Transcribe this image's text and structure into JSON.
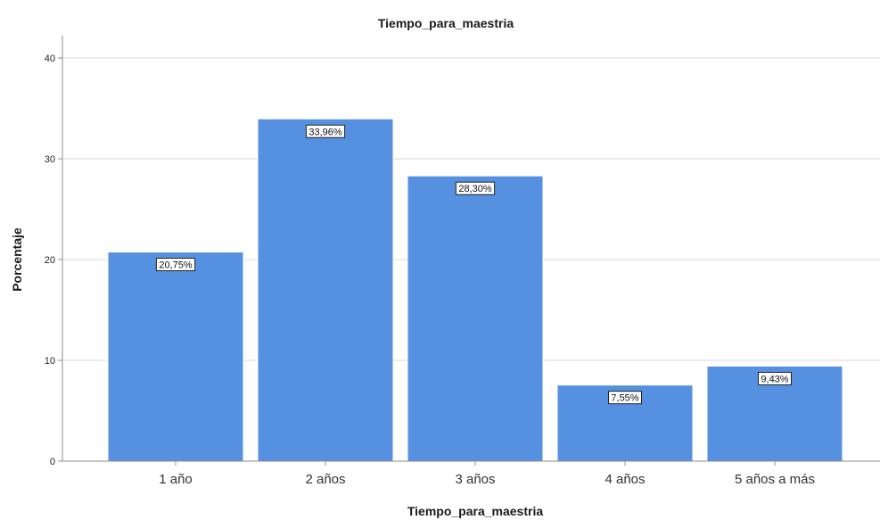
{
  "chart_data": {
    "type": "bar",
    "title": "Tiempo_para_maestria",
    "xlabel": "Tiempo_para_maestria",
    "ylabel": "Porcentaje",
    "categories": [
      "1 año",
      "2 años",
      "3 años",
      "4 años",
      "5 años a más"
    ],
    "values": [
      20.75,
      33.96,
      28.3,
      7.55,
      9.43
    ],
    "data_labels": [
      "20,75%",
      "33,96%",
      "28,30%",
      "7,55%",
      "9,43%"
    ],
    "ylim": [
      0,
      40
    ],
    "yticks": [
      "0",
      "10",
      "20",
      "30",
      "40"
    ],
    "grid": true,
    "legend": "none",
    "colors": {
      "bar": "#5591E0",
      "bar_edge": "#ffffff",
      "grid": "#d9d9d9",
      "axis": "#8c8c8c"
    }
  }
}
